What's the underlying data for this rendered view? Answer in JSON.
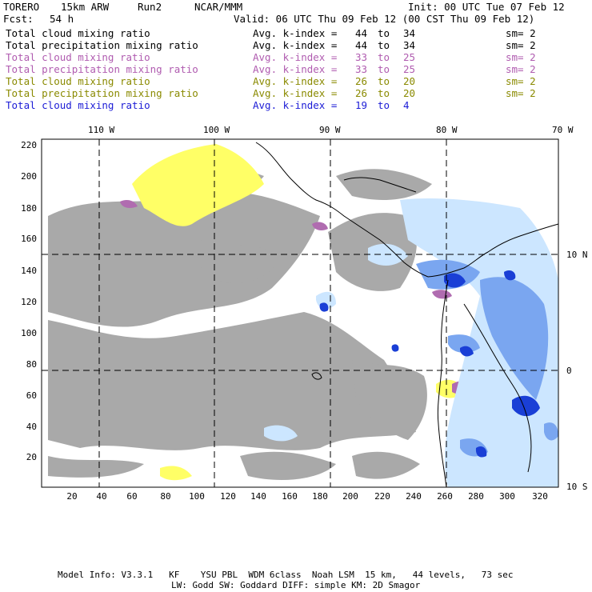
{
  "header": {
    "model": "TORERO",
    "resolution": "15km ARW",
    "run": "Run2",
    "org": "NCAR/MMM",
    "init": "Init: 00 UTC Tue 07 Feb 12",
    "fcst_label": "Fcst:",
    "fcst_value": "54 h",
    "valid": "Valid: 06 UTC Thu 09 Feb 12 (00 CST Thu 09 Feb 12)"
  },
  "fields": [
    {
      "name": "Total cloud mixing ratio",
      "kindex": "Avg. k-index =",
      "from": "44",
      "to_word": "to",
      "to": "34",
      "sm": "sm= 2",
      "color": "#000000"
    },
    {
      "name": "Total precipitation mixing ratio",
      "kindex": "Avg. k-index =",
      "from": "44",
      "to_word": "to",
      "to": "34",
      "sm": "sm= 2",
      "color": "#000000"
    },
    {
      "name": "Total cloud mixing ratio",
      "kindex": "Avg. k-index =",
      "from": "33",
      "to_word": "to",
      "to": "25",
      "sm": "sm= 2",
      "color": "#b05cb0"
    },
    {
      "name": "Total precipitation mixing ratio",
      "kindex": "Avg. k-index =",
      "from": "33",
      "to_word": "to",
      "to": "25",
      "sm": "sm= 2",
      "color": "#b05cb0"
    },
    {
      "name": "Total cloud mixing ratio",
      "kindex": "Avg. k-index =",
      "from": "26",
      "to_word": "to",
      "to": "20",
      "sm": "sm= 2",
      "color": "#8a8a00"
    },
    {
      "name": "Total precipitation mixing ratio",
      "kindex": "Avg. k-index =",
      "from": "26",
      "to_word": "to",
      "to": "20",
      "sm": "sm= 2",
      "color": "#8a8a00"
    },
    {
      "name": "Total cloud mixing ratio",
      "kindex": "Avg. k-index =",
      "from": "19",
      "to_word": "to",
      "to": "4",
      "sm": "",
      "color": "#1c1cd6"
    }
  ],
  "map": {
    "top_lon_labels": [
      "110 W",
      "100 W",
      "90 W",
      "80 W",
      "70 W"
    ],
    "right_lat_labels": [
      "10 N",
      "0",
      "10 S"
    ],
    "left_ticks": [
      "220",
      "200",
      "180",
      "160",
      "140",
      "120",
      "100",
      "80",
      "60",
      "40",
      "20"
    ],
    "bottom_ticks": [
      "20",
      "40",
      "60",
      "80",
      "100",
      "120",
      "140",
      "160",
      "180",
      "200",
      "220",
      "240",
      "260",
      "280",
      "300",
      "320"
    ],
    "colors": {
      "gray": "#a9a9a9",
      "yellow": "#ffff66",
      "purple": "#b06cb0",
      "light_blue": "#cce6ff",
      "mid_blue": "#7aa6f0",
      "dark_blue": "#1a3fd6"
    }
  },
  "footer": {
    "line1": "Model Info: V3.3.1   KF    YSU PBL  WDM 6class  Noah LSM  15 km,   44 levels,   73 sec",
    "line2": "LW: Godd SW: Goddard DIFF: simple KM: 2D Smagor"
  }
}
